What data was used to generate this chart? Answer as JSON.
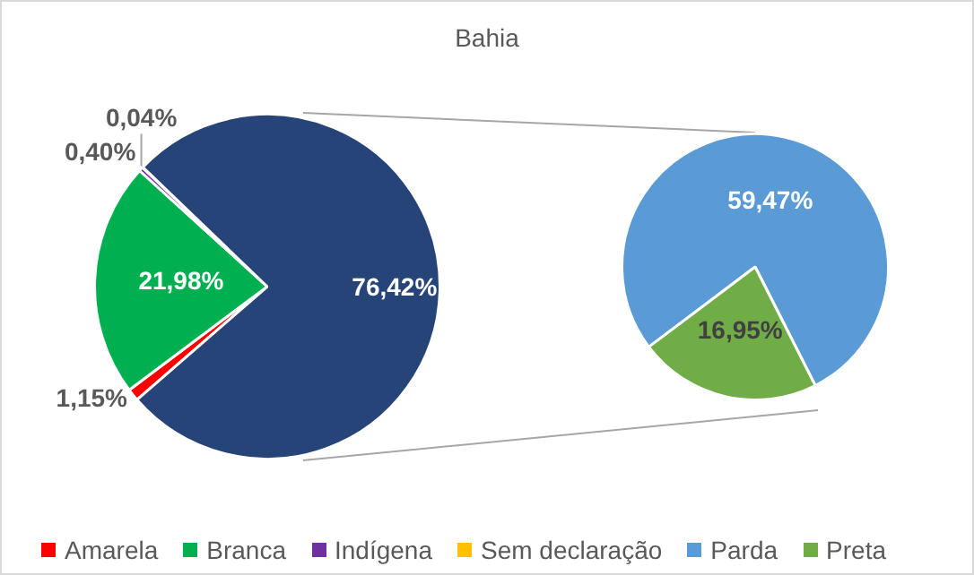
{
  "chart_data": [
    {
      "type": "pie",
      "title": "Bahia",
      "categories": [
        "Amarela",
        "Branca",
        "Indígena",
        "Sem declaração",
        null
      ],
      "values": [
        1.15,
        21.98,
        0.4,
        0.04,
        76.42
      ],
      "colors": [
        "#ff0000",
        "#00b050",
        "#7030a0",
        "#ffc000",
        "#264478"
      ],
      "value_labels": [
        "1,15%",
        "21,98%",
        "0,40%",
        "0,04%",
        "76,42%"
      ],
      "legend": "bottom"
    },
    {
      "type": "pie",
      "categories": [
        "Parda",
        "Preta"
      ],
      "values": [
        59.47,
        16.95
      ],
      "colors": [
        "#5b9bd5",
        "#70ad47"
      ],
      "value_labels": [
        "59,47%",
        "16,95%"
      ],
      "legend": "bottom"
    }
  ]
}
